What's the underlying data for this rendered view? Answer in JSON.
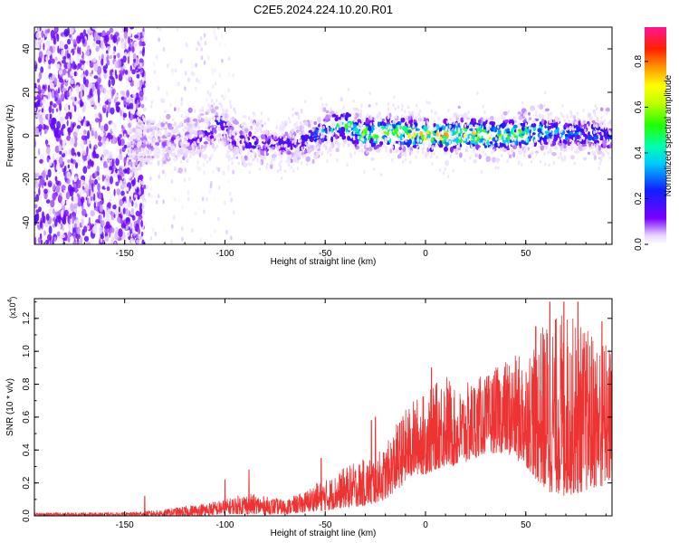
{
  "title": "C2E5.2024.224.10.20.R01",
  "chart_data": [
    {
      "type": "heatmap",
      "xlabel": "Height of straight line (km)",
      "ylabel": "Frequency (Hz)",
      "xlim": [
        -195,
        93
      ],
      "ylim": [
        -50,
        50
      ],
      "xticks": [
        -150,
        -100,
        -50,
        0,
        50
      ],
      "yticks": [
        -40,
        -20,
        0,
        20,
        40
      ],
      "colorbar": {
        "label": "Normalized spectral amplitude",
        "range": [
          0,
          0.95
        ],
        "ticks": [
          0.0,
          0.2,
          0.4,
          0.6,
          0.8
        ],
        "tick_labels": [
          "0.0",
          "0.2",
          "0.4",
          "0.6",
          "0.8"
        ]
      },
      "ridge_profile": {
        "x": [
          -145,
          -130,
          -115,
          -105,
          -102,
          -98,
          -90,
          -80,
          -70,
          -60,
          -50,
          -45,
          -40,
          -35,
          -30,
          -20,
          -10,
          0,
          10,
          20,
          30,
          40,
          50,
          60,
          70,
          80,
          93
        ],
        "freq": [
          -4,
          -3,
          -2,
          3,
          8,
          0,
          -3,
          -4,
          -4,
          -2,
          2,
          4,
          5,
          2,
          1,
          1,
          1,
          0,
          0,
          1,
          0,
          0,
          1,
          2,
          1,
          1,
          0
        ],
        "amplitude": [
          0.08,
          0.1,
          0.12,
          0.2,
          0.25,
          0.22,
          0.2,
          0.18,
          0.18,
          0.25,
          0.35,
          0.45,
          0.55,
          0.55,
          0.6,
          0.65,
          0.7,
          0.8,
          0.75,
          0.7,
          0.65,
          0.6,
          0.55,
          0.4,
          0.35,
          0.3,
          0.3
        ]
      }
    },
    {
      "type": "line",
      "xlabel": "Height of straight line (km)",
      "ylabel": "SNR (10 * v/v)",
      "yscale_label": "(x10",
      "yscale_exp": "4",
      "yscale_close": ")",
      "xlim": [
        -195,
        93
      ],
      "ylim": [
        0,
        1.32
      ],
      "xticks": [
        -150,
        -100,
        -50,
        0,
        50
      ],
      "yticks": [
        0.0,
        0.2,
        0.4,
        0.6,
        0.8,
        1.0,
        1.2
      ],
      "ytick_labels": [
        "0.0",
        "0.2",
        "0.4",
        "0.6",
        "0.8",
        "1.0",
        "1.2"
      ],
      "color": "#ee3333",
      "series": [
        {
          "envelope_x": [
            -195,
            -170,
            -150,
            -140,
            -130,
            -120,
            -110,
            -100,
            -95,
            -90,
            -80,
            -70,
            -60,
            -55,
            -50,
            -45,
            -40,
            -30,
            -25,
            -20,
            -15,
            -10,
            -5,
            0,
            5,
            10,
            15,
            20,
            25,
            30,
            40,
            50,
            60,
            70,
            80,
            93
          ],
          "envelope_low": [
            0.0,
            0.0,
            0.0,
            0.0,
            0.0,
            0.0,
            0.0,
            0.01,
            0.01,
            0.01,
            0.01,
            0.01,
            0.02,
            0.03,
            0.03,
            0.04,
            0.05,
            0.06,
            0.08,
            0.1,
            0.15,
            0.2,
            0.25,
            0.25,
            0.28,
            0.3,
            0.3,
            0.32,
            0.35,
            0.38,
            0.38,
            0.3,
            0.15,
            0.12,
            0.15,
            0.2
          ],
          "envelope_high": [
            0.02,
            0.02,
            0.02,
            0.03,
            0.04,
            0.06,
            0.08,
            0.1,
            0.12,
            0.14,
            0.12,
            0.1,
            0.15,
            0.2,
            0.22,
            0.25,
            0.3,
            0.35,
            0.38,
            0.42,
            0.55,
            0.65,
            0.72,
            0.75,
            0.8,
            0.9,
            0.75,
            0.8,
            0.85,
            0.85,
            0.95,
            1.0,
            1.2,
            1.25,
            1.15,
            1.05
          ],
          "spikes": [
            {
              "x": -140,
              "y": 0.12
            },
            {
              "x": -100,
              "y": 0.22
            },
            {
              "x": -88,
              "y": 0.28
            },
            {
              "x": -52,
              "y": 0.35
            },
            {
              "x": -27,
              "y": 0.58
            },
            {
              "x": -25,
              "y": 0.6
            },
            {
              "x": 3,
              "y": 0.9
            },
            {
              "x": 55,
              "y": 1.15
            },
            {
              "x": 62,
              "y": 1.3
            },
            {
              "x": 69,
              "y": 1.3
            },
            {
              "x": 76,
              "y": 1.3
            },
            {
              "x": 88,
              "y": 1.18
            }
          ]
        }
      ]
    }
  ]
}
